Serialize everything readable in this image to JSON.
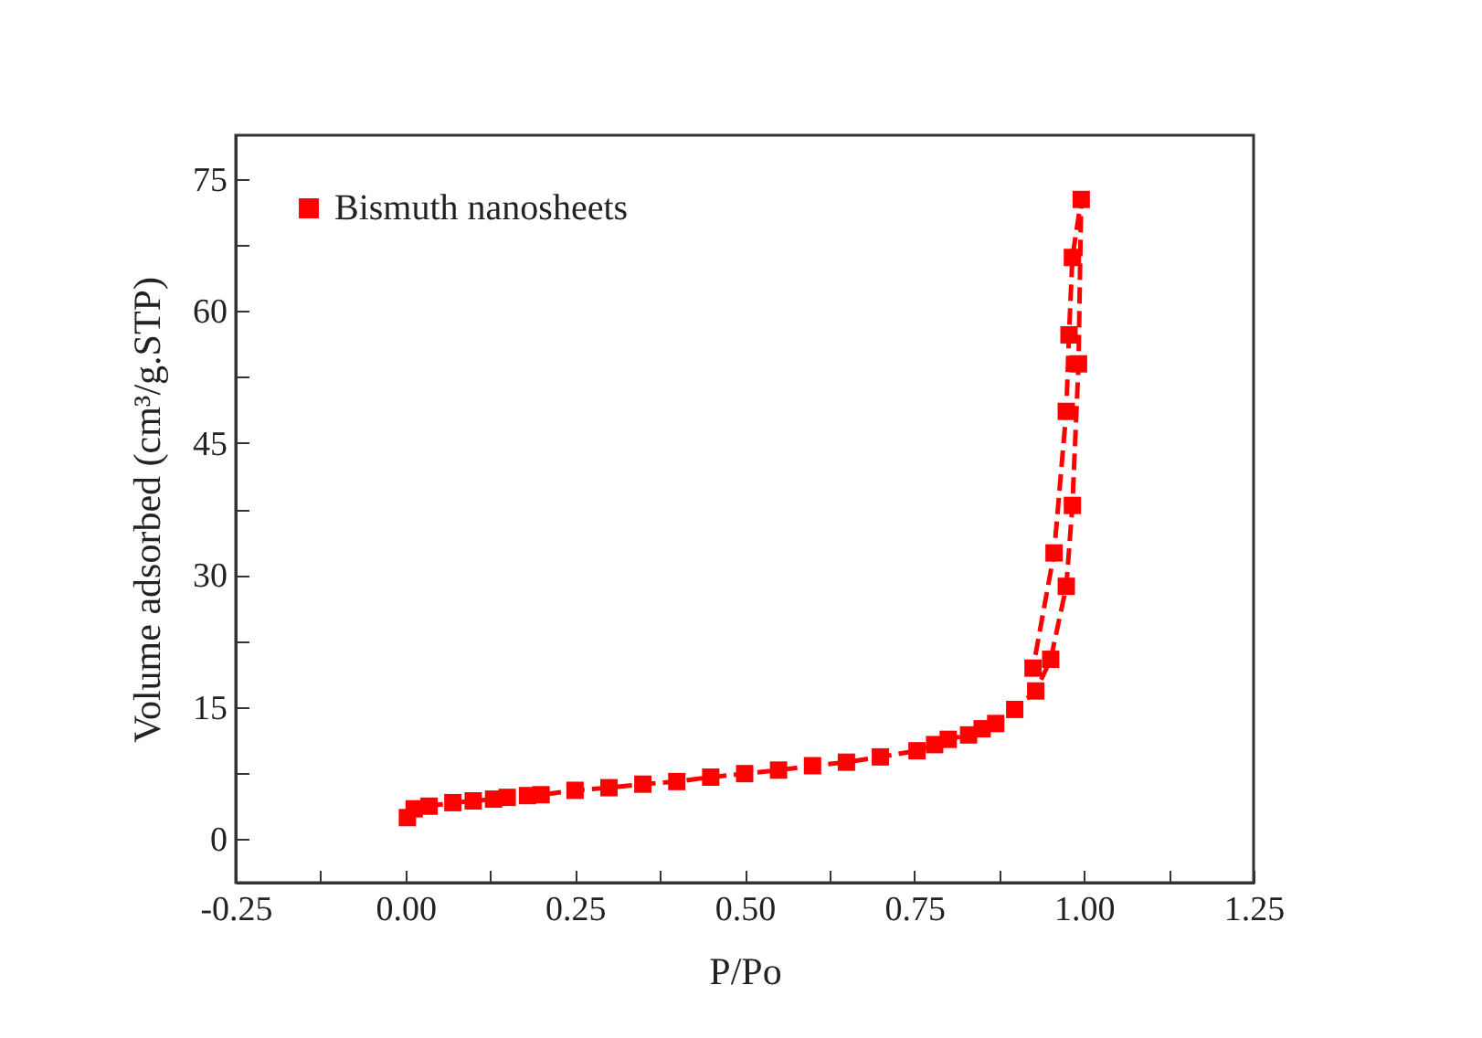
{
  "chart_data": {
    "type": "line",
    "xlabel": "P/Po",
    "ylabel": "Volume adsorbed (cm³/g.STP)",
    "xlim": [
      -0.25,
      1.25
    ],
    "ylim": [
      -5,
      80
    ],
    "xticks": [
      -0.25,
      {
        "value": -0.125,
        "label": null
      },
      "0.00",
      {
        "value": 0.125,
        "label": null
      },
      {
        "value": 0.25,
        "label": "0.25"
      },
      {
        "value": 0.375,
        "label": null
      },
      {
        "value": 0.5,
        "label": "0.50"
      },
      {
        "value": 0.625,
        "label": null
      },
      {
        "value": 0.75,
        "label": "0.75"
      },
      {
        "value": 0.875,
        "label": null
      },
      {
        "value": 1,
        "label": "1.00"
      },
      {
        "value": 1.125,
        "label": null
      },
      {
        "value": 1.25,
        "label": "1.25"
      }
    ],
    "yticks": [
      0,
      {
        "value": 7.5,
        "label": null
      },
      15,
      {
        "value": 22.5,
        "label": null
      },
      30,
      {
        "value": 37.5,
        "label": null
      },
      45,
      {
        "value": 52.5,
        "label": null
      },
      60,
      {
        "value": 67.5,
        "label": null
      },
      75
    ],
    "series": [
      {
        "name": "Bismuth nanosheets",
        "color": "#ff0000",
        "x": [
          0.003,
          0.013,
          0.035,
          0.07,
          0.1,
          0.13,
          0.15,
          0.18,
          0.2,
          0.25,
          0.3,
          0.35,
          0.4,
          0.45,
          0.5,
          0.55,
          0.6,
          0.65,
          0.7,
          0.754,
          0.78,
          0.8,
          0.83,
          0.85,
          0.87,
          0.898,
          0.929,
          0.951,
          0.974,
          0.983,
          0.992,
          0.996,
          0.983,
          0.978,
          0.974,
          0.956,
          0.925
        ],
        "values": [
          2.4,
          3.4,
          3.7,
          4.1,
          4.3,
          4.5,
          4.7,
          4.9,
          5.0,
          5.5,
          5.8,
          6.2,
          6.5,
          7.0,
          7.4,
          7.8,
          8.3,
          8.7,
          9.3,
          10.0,
          10.7,
          11.3,
          11.8,
          12.5,
          13.1,
          14.7,
          16.8,
          20.4,
          28.7,
          37.9,
          54.0,
          72.7,
          66.1,
          57.3,
          48.6,
          32.5,
          19.4
        ]
      }
    ],
    "legend": "top left",
    "grid": false,
    "marker": "square",
    "line_style": "dashed"
  }
}
